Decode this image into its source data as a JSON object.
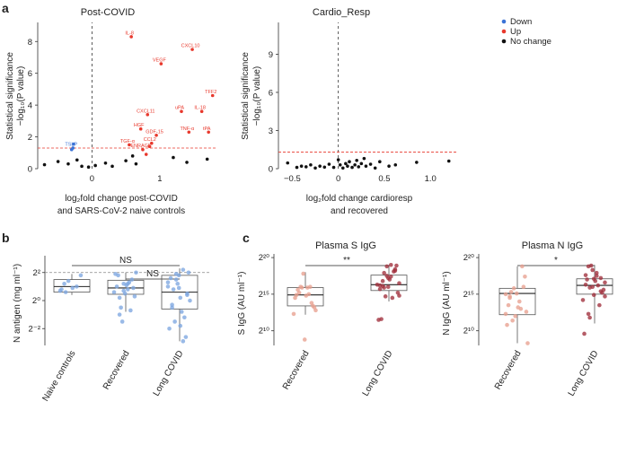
{
  "colors": {
    "down": "#3b73d6",
    "up": "#e8382c",
    "nochange": "#111111",
    "threshold": "#e8382c",
    "antigen": "#7ea6e0",
    "recovered": "#e8a090",
    "longcovid": "#a0303c",
    "box_edge": "#555555"
  },
  "panel_a": {
    "letter": "a",
    "legend": {
      "down": "Down",
      "up": "Up",
      "nochange": "No change"
    },
    "left": {
      "title": "Post-COVID",
      "ylabel1": "Statistical significance",
      "ylabel2": "−log₁₀(P value)",
      "xlabel1": "log₂fold change post-COVID",
      "xlabel2": "and SARS-CoV-2 naive controls",
      "xticks": [
        "0",
        "1"
      ],
      "yticks": [
        "0",
        "2",
        "4",
        "6",
        "8"
      ],
      "threshold": 1.3,
      "labeled_points": [
        {
          "label": "IL-8",
          "x": 0.58,
          "y": 8.3,
          "cls": "up"
        },
        {
          "label": "CXCL10",
          "x": 1.48,
          "y": 7.5,
          "cls": "up"
        },
        {
          "label": "VEGF",
          "x": 1.02,
          "y": 6.6,
          "cls": "up"
        },
        {
          "label": "TFF2",
          "x": 1.78,
          "y": 4.6,
          "cls": "up"
        },
        {
          "label": "uPA",
          "x": 1.32,
          "y": 3.6,
          "cls": "up"
        },
        {
          "label": "IL-18",
          "x": 1.62,
          "y": 3.6,
          "cls": "up"
        },
        {
          "label": "CXCL11",
          "x": 0.82,
          "y": 3.4,
          "cls": "up"
        },
        {
          "label": "HGF",
          "x": 0.72,
          "y": 2.5,
          "cls": "up"
        },
        {
          "label": "TNF-α",
          "x": 1.43,
          "y": 2.3,
          "cls": "up"
        },
        {
          "label": "tPA",
          "x": 1.72,
          "y": 2.3,
          "cls": "up"
        },
        {
          "label": "GDF-15",
          "x": 0.95,
          "y": 2.1,
          "cls": "up"
        },
        {
          "label": "TGF-α",
          "x": 0.55,
          "y": 1.5,
          "cls": "up"
        },
        {
          "label": "CCL2",
          "x": 0.88,
          "y": 1.6,
          "cls": "up"
        },
        {
          "label": "ENRAGE",
          "x": 0.75,
          "y": 1.2,
          "cls": "up"
        },
        {
          "label": "TSLP",
          "x": -0.28,
          "y": 1.3,
          "cls": "down"
        }
      ],
      "points": [
        {
          "x": -0.7,
          "y": 0.25
        },
        {
          "x": -0.5,
          "y": 0.45
        },
        {
          "x": -0.35,
          "y": 0.3
        },
        {
          "x": -0.15,
          "y": 0.15
        },
        {
          "x": -0.05,
          "y": 0.1
        },
        {
          "x": 0.05,
          "y": 0.2
        },
        {
          "x": 0.2,
          "y": 0.35
        },
        {
          "x": 0.3,
          "y": 0.15
        },
        {
          "x": 0.5,
          "y": 0.5
        },
        {
          "x": 0.6,
          "y": 0.8
        },
        {
          "x": 0.65,
          "y": 0.3
        },
        {
          "x": 1.2,
          "y": 0.7
        },
        {
          "x": 1.4,
          "y": 0.4
        },
        {
          "x": 1.7,
          "y": 0.6
        },
        {
          "x": -0.22,
          "y": 0.55
        },
        {
          "x": -0.3,
          "y": 1.2,
          "cls": "down"
        },
        {
          "x": -0.27,
          "y": 1.55,
          "cls": "down"
        },
        {
          "x": 0.85,
          "y": 1.4,
          "cls": "up"
        },
        {
          "x": 0.8,
          "y": 0.9,
          "cls": "up"
        }
      ]
    },
    "right": {
      "title": "Cardio_Resp",
      "ylabel1": "Statistical significance",
      "ylabel2": "−log₁₀(P value)",
      "xlabel1": "log₂fold change cardioresp",
      "xlabel2": "and recovered",
      "xticks": [
        "−0.5",
        "0",
        "0.5",
        "1.0"
      ],
      "yticks": [
        "0",
        "3",
        "6",
        "9"
      ],
      "threshold": 1.3,
      "points": [
        {
          "x": -0.55,
          "y": 0.45
        },
        {
          "x": -0.45,
          "y": 0.1
        },
        {
          "x": -0.4,
          "y": 0.2
        },
        {
          "x": -0.35,
          "y": 0.15
        },
        {
          "x": -0.3,
          "y": 0.3
        },
        {
          "x": -0.25,
          "y": 0.05
        },
        {
          "x": -0.2,
          "y": 0.2
        },
        {
          "x": -0.15,
          "y": 0.12
        },
        {
          "x": -0.05,
          "y": 0.1
        },
        {
          "x": 0.0,
          "y": 0.7
        },
        {
          "x": 0.02,
          "y": 0.3
        },
        {
          "x": 0.05,
          "y": 0.05
        },
        {
          "x": 0.08,
          "y": 0.4
        },
        {
          "x": 0.1,
          "y": 0.2
        },
        {
          "x": 0.12,
          "y": 0.55
        },
        {
          "x": 0.15,
          "y": 0.1
        },
        {
          "x": 0.18,
          "y": 0.3
        },
        {
          "x": 0.2,
          "y": 0.65
        },
        {
          "x": 0.22,
          "y": 0.15
        },
        {
          "x": 0.25,
          "y": 0.4
        },
        {
          "x": 0.28,
          "y": 0.8
        },
        {
          "x": 0.3,
          "y": 0.2
        },
        {
          "x": 0.35,
          "y": 0.35
        },
        {
          "x": 0.4,
          "y": 0.05
        },
        {
          "x": 0.45,
          "y": 0.55
        },
        {
          "x": 0.55,
          "y": 0.2
        },
        {
          "x": 0.62,
          "y": 0.3
        },
        {
          "x": 0.85,
          "y": 0.5
        },
        {
          "x": 1.2,
          "y": 0.6
        },
        {
          "x": -0.1,
          "y": 0.35
        }
      ]
    }
  },
  "panel_b": {
    "letter": "b",
    "ylabel": "N antigen (mg ml⁻¹)",
    "yticks": [
      "2⁻²",
      "2⁰",
      "2²"
    ],
    "categories": [
      "Naive controls",
      "Recovered",
      "Long COVID"
    ],
    "sig1": "NS",
    "sig2": "NS",
    "threshold_log2": 2,
    "boxes": [
      {
        "q1": 0.6,
        "med": 1.0,
        "q3": 1.5,
        "lo": 0.4,
        "hi": 1.9
      },
      {
        "q1": 0.45,
        "med": 0.9,
        "q3": 1.45,
        "lo": -0.8,
        "hi": 2.0
      },
      {
        "q1": -0.6,
        "med": 0.6,
        "q3": 1.8,
        "lo": -2.9,
        "hi": 2.3
      }
    ],
    "points": [
      [
        0.7,
        1.2,
        1.4,
        0.9,
        1.0,
        1.8,
        0.8,
        0.6
      ],
      [
        0.2,
        1.2,
        0.8,
        1.5,
        2.0,
        1.0,
        -0.5,
        0.5,
        1.3,
        0.9,
        0.6,
        1.8,
        -1.5,
        1.1,
        -0.7,
        0.3,
        1.9,
        -1.0,
        0.7,
        1.2
      ],
      [
        1.8,
        2.2,
        0.5,
        1.0,
        -0.3,
        1.5,
        0.2,
        -1.2,
        2.0,
        -2.0,
        0.8,
        1.2,
        -0.8,
        -2.6,
        0.0,
        1.6,
        -1.5,
        0.9,
        -2.9,
        0.4,
        1.3,
        -0.5,
        1.9,
        -1.8
      ]
    ]
  },
  "panel_c": {
    "letter": "c",
    "left": {
      "title": "Plasma S IgG",
      "ylabel": "S IgG (AU ml⁻¹)",
      "yticks": [
        "2¹⁰",
        "2¹⁵",
        "2²⁰"
      ],
      "categories": [
        "Recovered",
        "Long COVID"
      ],
      "sig": "**",
      "boxes": [
        {
          "q1": 13.4,
          "med": 14.9,
          "q3": 15.9,
          "lo": 12.2,
          "hi": 18.0
        },
        {
          "q1": 15.5,
          "med": 16.3,
          "q3": 17.6,
          "lo": 14.0,
          "hi": 19.0
        }
      ],
      "points": [
        [
          12.3,
          15.6,
          15.9,
          14.8,
          16.0,
          13.2,
          14.5,
          15.2,
          17.8,
          15.9,
          13.8,
          12.8,
          14.9,
          16.0,
          8.8,
          15.0,
          13.4
        ],
        [
          16.8,
          18.8,
          17.4,
          18.2,
          16.5,
          15.7,
          17.9,
          16.0,
          14.5,
          18.9,
          16.3,
          11.6,
          14.7,
          17.0,
          18.1,
          15.2,
          11.5,
          16.1,
          17.5,
          19.0,
          18.4,
          14.8,
          16.2,
          15.9,
          17.2
        ]
      ]
    },
    "right": {
      "title": "Plasma N IgG",
      "ylabel": "N IgG (AU ml⁻¹)",
      "yticks": [
        "2¹⁰",
        "2¹⁵",
        "2²⁰"
      ],
      "categories": [
        "Recovered",
        "Long COVID"
      ],
      "sig": "*",
      "boxes": [
        {
          "q1": 12.2,
          "med": 15.1,
          "q3": 15.8,
          "lo": 8.3,
          "hi": 18.8
        },
        {
          "q1": 15.0,
          "med": 16.2,
          "q3": 17.1,
          "lo": 11.0,
          "hi": 19.0
        }
      ],
      "points": [
        [
          15.0,
          14.5,
          15.8,
          13.2,
          18.8,
          12.6,
          10.8,
          15.3,
          12.0,
          14.0,
          16.0,
          8.3,
          13.5,
          11.4,
          15.1,
          13.0,
          17.4,
          12.3,
          14.7
        ],
        [
          18.8,
          18.3,
          17.9,
          17.2,
          16.6,
          17.6,
          15.9,
          14.9,
          16.2,
          15.2,
          14.2,
          17.0,
          18.9,
          16.8,
          13.5,
          15.6,
          9.6,
          12.3,
          16.0,
          17.5,
          15.4,
          14.7,
          16.3,
          11.8,
          17.1
        ]
      ]
    }
  },
  "chart_data": [
    {
      "type": "scatter",
      "title": "Post-COVID",
      "xlabel": "log2fold change post-COVID and SARS-CoV-2 naive controls",
      "ylabel": "Statistical significance −log10(P value)",
      "xlim": [
        -0.8,
        1.85
      ],
      "ylim": [
        0,
        9.2
      ],
      "threshold_y": 1.3,
      "legend": [
        "Down",
        "Up",
        "No change"
      ],
      "labeled_genes": [
        "IL-8",
        "CXCL10",
        "VEGF",
        "TFF2",
        "uPA",
        "IL-18",
        "CXCL11",
        "HGF",
        "TNF-α",
        "tPA",
        "GDF-15",
        "TGF-α",
        "CCL2",
        "ENRAGE",
        "TSLP"
      ]
    },
    {
      "type": "scatter",
      "title": "Cardio_Resp",
      "xlabel": "log2fold change cardioresp and recovered",
      "ylabel": "Statistical significance −log10(P value)",
      "xlim": [
        -0.65,
        1.3
      ],
      "ylim": [
        0,
        11.5
      ],
      "threshold_y": 1.3
    },
    {
      "type": "box",
      "ylabel": "N antigen (mg ml−1)",
      "categories": [
        "Naive controls",
        "Recovered",
        "Long COVID"
      ],
      "yscale": "log2",
      "ylim_log2": [
        -3.2,
        3.2
      ],
      "significance": [
        "NS",
        "NS"
      ]
    },
    {
      "type": "box",
      "title": "Plasma S IgG",
      "ylabel": "S IgG (AU ml−1)",
      "categories": [
        "Recovered",
        "Long COVID"
      ],
      "yscale": "log2",
      "ylim_log2": [
        8,
        20.5
      ],
      "significance": "**"
    },
    {
      "type": "box",
      "title": "Plasma N IgG",
      "ylabel": "N IgG (AU ml−1)",
      "categories": [
        "Recovered",
        "Long COVID"
      ],
      "yscale": "log2",
      "ylim_log2": [
        8,
        20.5
      ],
      "significance": "*"
    }
  ]
}
